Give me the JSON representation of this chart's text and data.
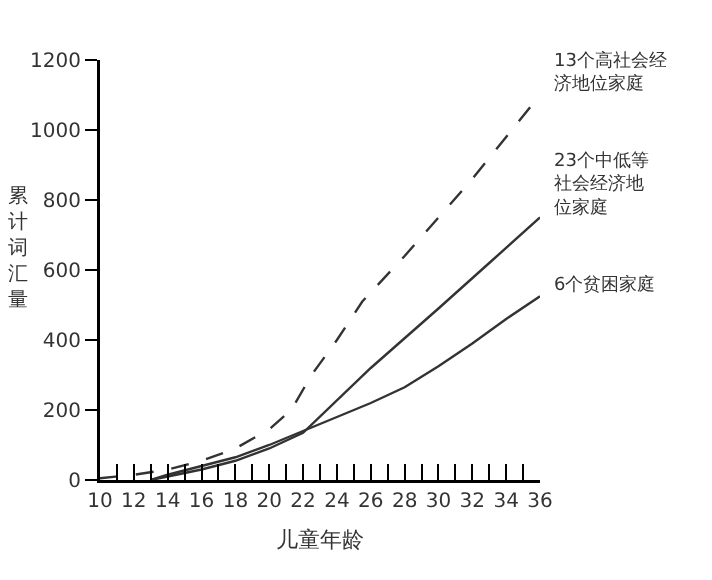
{
  "chart_data": {
    "type": "line",
    "xlabel": "儿童年龄",
    "ylabel": "累计词汇量",
    "marker": "none",
    "grid": false,
    "legend": false,
    "xlim": [
      10,
      36
    ],
    "xticks": [
      10,
      {
        "value": 11,
        "label": null
      },
      12,
      {
        "value": 13,
        "label": null
      },
      14,
      {
        "value": 15,
        "label": null
      },
      16,
      {
        "value": 17,
        "label": null
      },
      18,
      {
        "value": 19,
        "label": null
      },
      20,
      {
        "value": 21,
        "label": null
      },
      22,
      {
        "value": 23,
        "label": null
      },
      24,
      {
        "value": 25,
        "label": null
      },
      26,
      {
        "value": 27,
        "label": null
      },
      28,
      {
        "value": 29,
        "label": null
      },
      30,
      {
        "value": 31,
        "label": null
      },
      32,
      {
        "value": 33,
        "label": null
      },
      34,
      {
        "value": 35,
        "label": null
      },
      36
    ],
    "ylim": [
      0,
      1200
    ],
    "yticks": [
      0,
      200,
      400,
      600,
      800,
      1000,
      1200
    ],
    "series": [
      {
        "name": "13个高社会经济地位家庭",
        "color": "#333333",
        "line_style": "dashed",
        "x": [
          10,
          12,
          14,
          16,
          18,
          20,
          21.3,
          22.5,
          24,
          25.5,
          28,
          30,
          32,
          34,
          36
        ],
        "values": [
          5,
          15,
          30,
          55,
          90,
          145,
          200,
          300,
          400,
          510,
          640,
          750,
          860,
          980,
          1100
        ]
      },
      {
        "name": "23个中低等社会经济地位家庭",
        "color": "#333333",
        "line_style": "solid",
        "x": [
          13,
          14,
          16,
          18,
          20,
          22,
          26,
          30,
          33,
          36
        ],
        "values": [
          0,
          10,
          30,
          55,
          90,
          135,
          320,
          490,
          620,
          750
        ]
      },
      {
        "name": "6个贫困家庭",
        "color": "#333333",
        "line_style": "solid",
        "x": [
          13,
          14,
          16,
          18,
          20,
          22,
          24,
          26,
          28,
          30,
          32,
          34,
          36
        ],
        "values": [
          0,
          15,
          40,
          65,
          100,
          140,
          180,
          220,
          265,
          325,
          390,
          460,
          525
        ]
      }
    ]
  }
}
